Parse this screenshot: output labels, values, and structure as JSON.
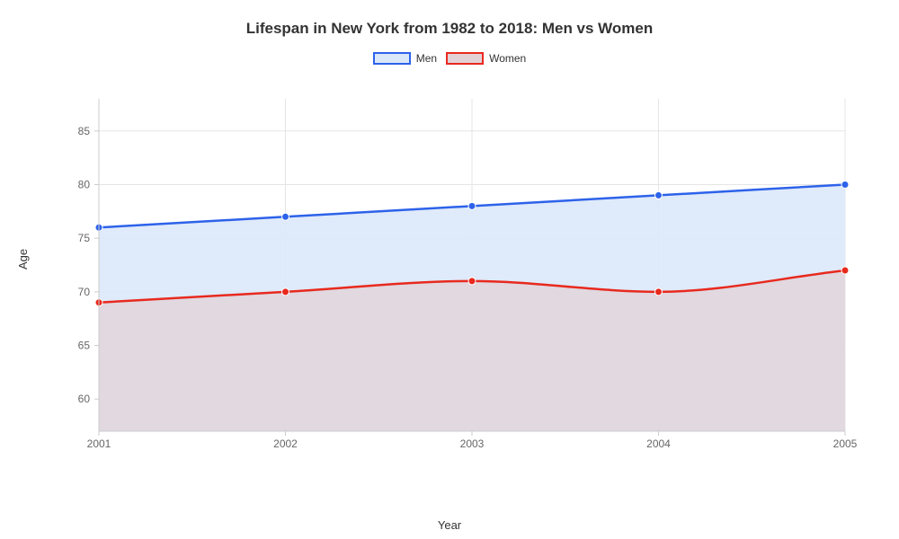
{
  "chart": {
    "type": "area-line",
    "title": "Lifespan in New York from 1982 to 2018: Men vs Women",
    "title_fontsize": 17,
    "title_color": "#333333",
    "background_color": "#ffffff",
    "plot_background": "#ffffff",
    "grid_color": "#e5e5e5",
    "axis_line_color": "#cccccc",
    "tick_label_color": "#666666",
    "axis_title_color": "#333333",
    "xlabel": "Year",
    "ylabel": "Age",
    "label_fontsize": 13,
    "tick_fontsize": 12,
    "xlim": [
      2001,
      2005
    ],
    "ylim": [
      57,
      88
    ],
    "yticks": [
      60,
      65,
      70,
      75,
      80,
      85
    ],
    "xticks": [
      2001,
      2002,
      2003,
      2004,
      2005
    ],
    "xtick_labels": [
      "2001",
      "2002",
      "2003",
      "2004",
      "2005"
    ],
    "line_width": 2.5,
    "marker_radius": 4,
    "legend": {
      "position": "top-center",
      "items": [
        {
          "label": "Men",
          "stroke": "#2d62ea",
          "fill": "#dbe8f9"
        },
        {
          "label": "Women",
          "stroke": "#e8291e",
          "fill": "#e2d1d7"
        }
      ],
      "swatch_width": 42,
      "swatch_height": 14,
      "fontsize": 12
    },
    "series": [
      {
        "name": "Men",
        "x": [
          2001,
          2002,
          2003,
          2004,
          2005
        ],
        "y": [
          76,
          77,
          78,
          79,
          80
        ],
        "line_color": "#2d62ea",
        "marker_color": "#2d62ea",
        "fill_color": "#dbe8f9",
        "fill_opacity": 0.9,
        "curve": "monotone"
      },
      {
        "name": "Women",
        "x": [
          2001,
          2002,
          2003,
          2004,
          2005
        ],
        "y": [
          69,
          70,
          71,
          70,
          72
        ],
        "line_color": "#e8291e",
        "marker_color": "#e8291e",
        "fill_color": "#e2d1d7",
        "fill_opacity": 0.75,
        "curve": "monotone"
      }
    ]
  }
}
